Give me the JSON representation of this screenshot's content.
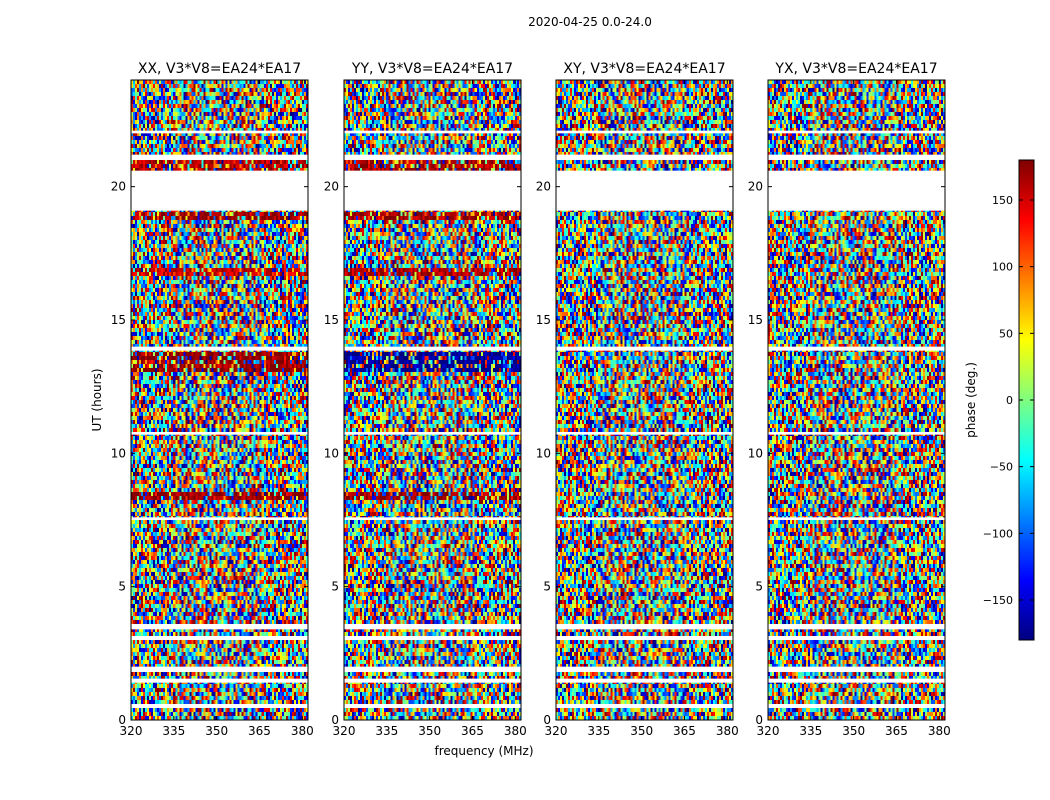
{
  "figure_title": "2020-04-25 0.0-24.0",
  "xlabel": "frequency (MHz)",
  "ylabel": "UT (hours)",
  "colorbar_label": "phase (deg.)",
  "colors": {
    "jet": [
      "#00007f",
      "#0000ff",
      "#007fff",
      "#00ffff",
      "#7fff7f",
      "#ffff00",
      "#ff7f00",
      "#ff0000",
      "#7f0000"
    ]
  },
  "chart_data": {
    "type": "heatmap",
    "title": "2020-04-25 0.0-24.0",
    "xlabel": "frequency (MHz)",
    "ylabel": "UT (hours)",
    "xlim": [
      320,
      382
    ],
    "ylim": [
      0,
      24
    ],
    "x_ticks": [
      320,
      335,
      350,
      365,
      380
    ],
    "y_ticks": [
      0,
      5,
      10,
      15,
      20
    ],
    "colorbar": {
      "label": "phase (deg.)",
      "range": [
        -180,
        180
      ],
      "ticks": [
        150,
        100,
        50,
        0,
        -50,
        -100,
        -150
      ]
    },
    "flagged_hours": [
      [
        0.45,
        0.6
      ],
      [
        1.4,
        1.55
      ],
      [
        1.8,
        2.0
      ],
      [
        3.0,
        3.15
      ],
      [
        3.4,
        3.6
      ],
      [
        7.5,
        7.6
      ],
      [
        10.7,
        10.8
      ],
      [
        13.85,
        14.0
      ],
      [
        19.1,
        20.6
      ],
      [
        21.0,
        21.2
      ],
      [
        22.0,
        22.1
      ]
    ],
    "panels": [
      {
        "title": "XX, V3*V8=EA24*EA17",
        "coherent_bands": [
          {
            "from": 20.6,
            "to": 21.0,
            "phase": 160
          },
          {
            "from": 18.8,
            "to": 19.1,
            "phase": 170
          },
          {
            "from": 16.6,
            "to": 17.0,
            "phase": 150
          },
          {
            "from": 13.0,
            "to": 13.8,
            "phase": 175
          },
          {
            "from": 8.3,
            "to": 8.6,
            "phase": 170
          }
        ]
      },
      {
        "title": "YY, V3*V8=EA24*EA17",
        "coherent_bands": [
          {
            "from": 20.6,
            "to": 21.0,
            "phase": 170
          },
          {
            "from": 18.8,
            "to": 19.1,
            "phase": 170
          },
          {
            "from": 16.6,
            "to": 17.0,
            "phase": 160
          },
          {
            "from": 13.0,
            "to": 13.8,
            "phase": -175
          },
          {
            "from": 8.3,
            "to": 8.6,
            "phase": 175
          }
        ]
      },
      {
        "title": "XY, V3*V8=EA24*EA17",
        "coherent_bands": []
      },
      {
        "title": "YX, V3*V8=EA24*EA17",
        "coherent_bands": []
      }
    ]
  }
}
